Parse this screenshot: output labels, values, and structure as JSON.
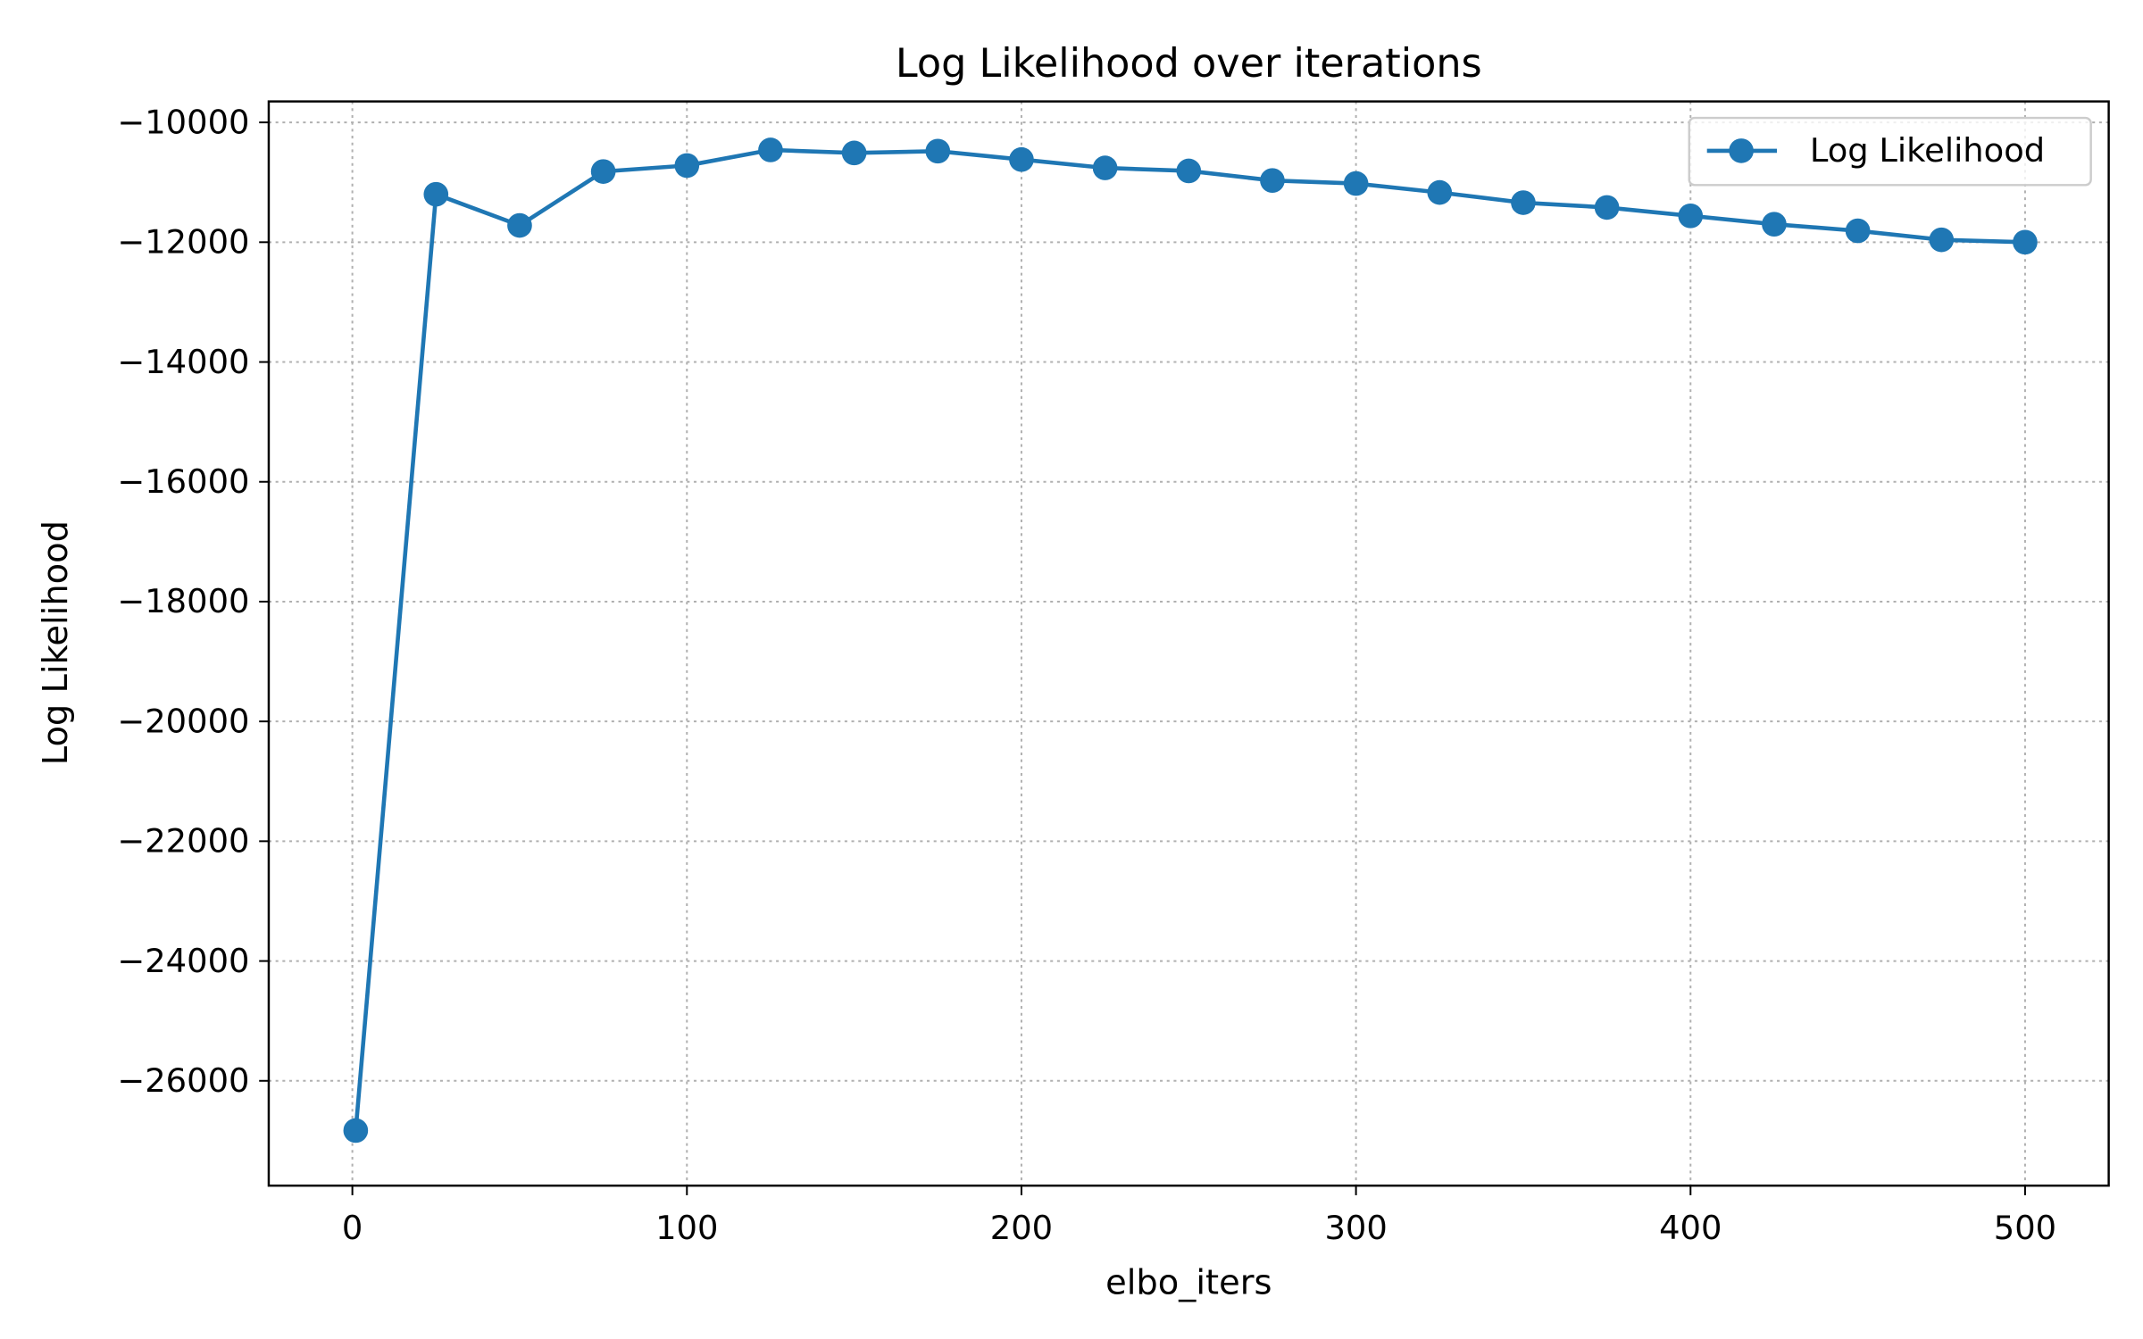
{
  "chart_data": {
    "type": "line",
    "title": "Log Likelihood over iterations",
    "xlabel": "elbo_iters",
    "ylabel": "Log Likelihood",
    "xlim": [
      -25,
      525
    ],
    "ylim": [
      -27750,
      -9650
    ],
    "xticks": [
      0,
      100,
      200,
      300,
      400,
      500
    ],
    "xtick_labels": [
      "0",
      "100",
      "200",
      "300",
      "400",
      "500"
    ],
    "yticks": [
      -10000,
      -12000,
      -14000,
      -16000,
      -18000,
      -20000,
      -22000,
      -24000,
      -26000
    ],
    "ytick_labels": [
      "−10000",
      "−12000",
      "−14000",
      "−16000",
      "−18000",
      "−20000",
      "−22000",
      "−24000",
      "−26000"
    ],
    "grid": true,
    "legend_position": "upper right",
    "series": [
      {
        "name": "Log Likelihood",
        "color": "#1f77b4",
        "marker": "circle",
        "x": [
          1,
          25,
          50,
          75,
          100,
          125,
          150,
          175,
          200,
          225,
          250,
          275,
          300,
          325,
          350,
          375,
          400,
          425,
          450,
          475,
          500
        ],
        "y": [
          -26830,
          -11200,
          -11720,
          -10820,
          -10720,
          -10460,
          -10510,
          -10480,
          -10620,
          -10760,
          -10810,
          -10970,
          -11020,
          -11170,
          -11340,
          -11420,
          -11560,
          -11700,
          -11810,
          -11960,
          -12000
        ]
      }
    ]
  }
}
